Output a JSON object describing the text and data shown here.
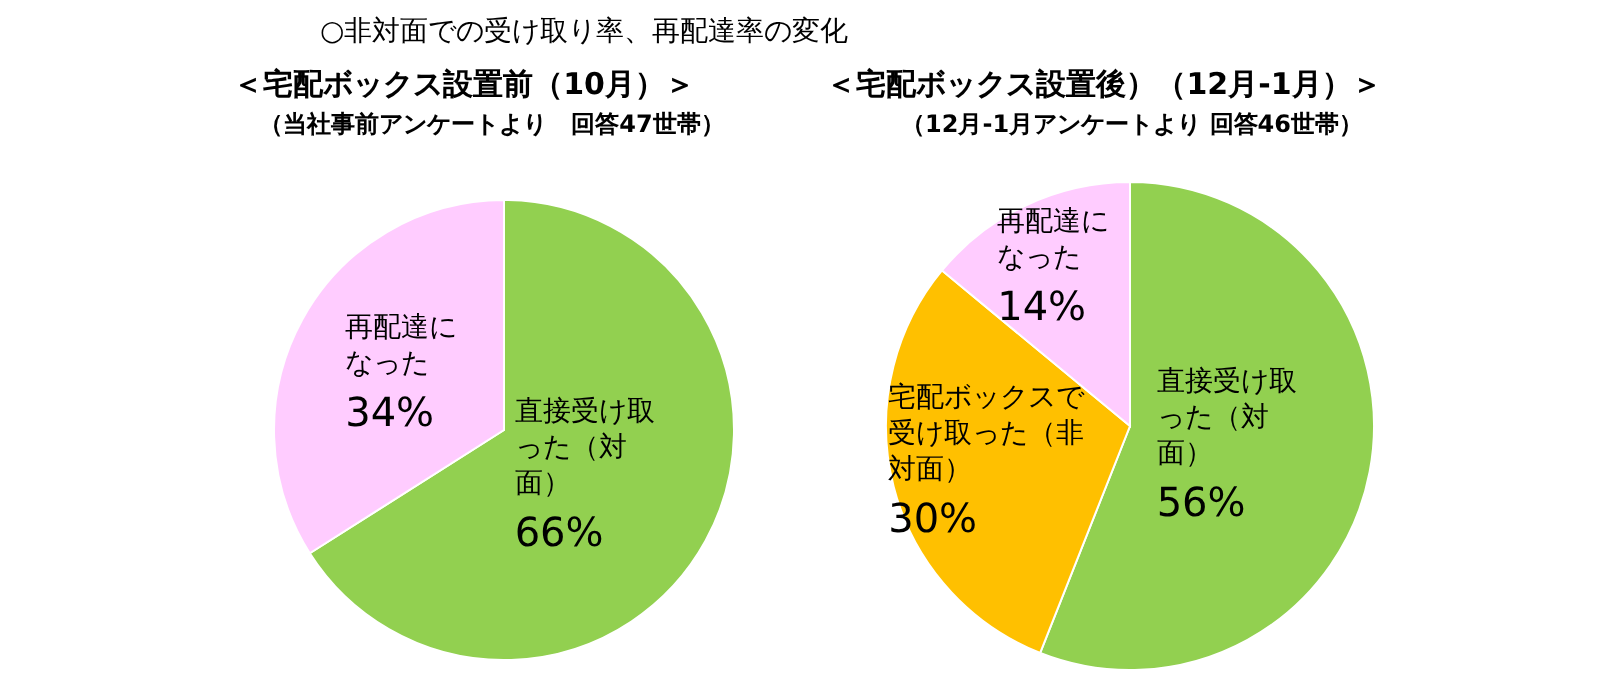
{
  "chart_data": [
    {
      "type": "pie",
      "title": "＜宅配ボックス設置前（10月）＞",
      "subtitle": "（当社事前アンケートより　回答47世帯）",
      "annotations": [
        "○非対面での受け取り率、再配達率の変化"
      ],
      "categories": [
        "直接受け取った（対面）",
        "再配達になった"
      ],
      "values": [
        66,
        34
      ],
      "value_labels": [
        "66%",
        "34%"
      ],
      "colors": [
        "#92d050",
        "#ffccff"
      ]
    },
    {
      "type": "pie",
      "title": "＜宅配ボックス設置後）（12月-1月）＞",
      "subtitle": "（12月-1月アンケートより 回答46世帯）",
      "categories": [
        "直接受け取った（対面）",
        "宅配ボックスで受け取った（非対面）",
        "再配達になった"
      ],
      "values": [
        56,
        30,
        14
      ],
      "value_labels": [
        "56%",
        "30%",
        "14%"
      ],
      "colors": [
        "#92d050",
        "#ffc000",
        "#ffccff"
      ]
    }
  ]
}
